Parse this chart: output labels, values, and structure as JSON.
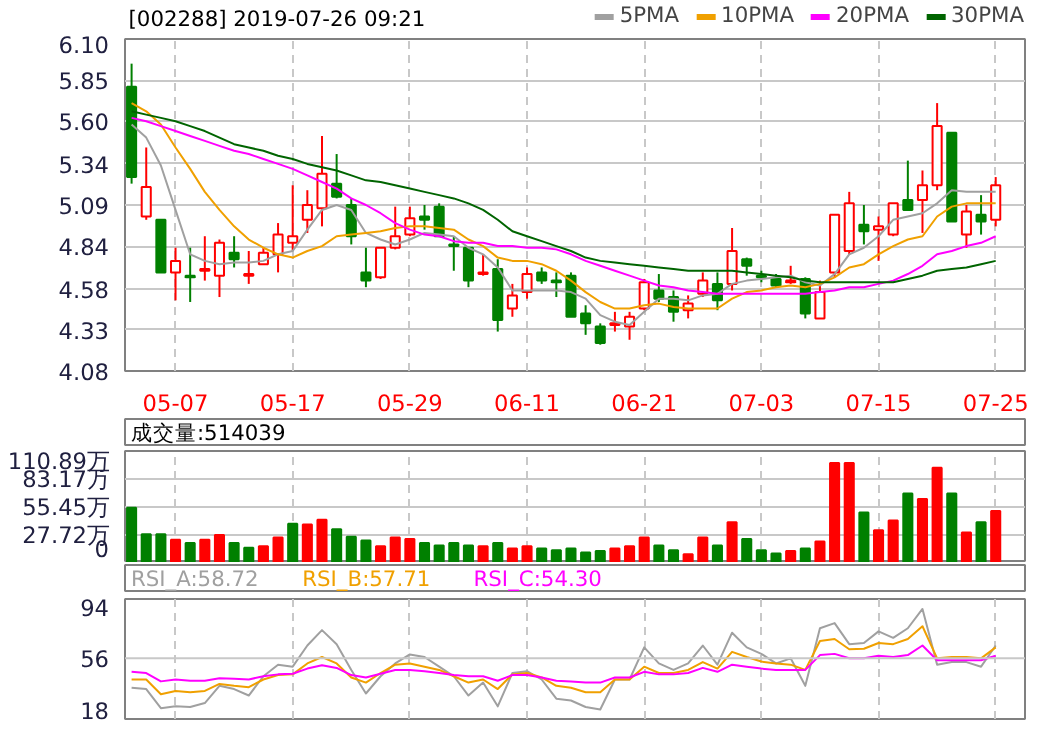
{
  "chart_data": [
    {
      "type": "candlestick",
      "title": "[002288] 2019-07-26 09:21",
      "categories": [
        null,
        null,
        null,
        "05-07",
        null,
        null,
        null,
        null,
        null,
        null,
        null,
        "05-17",
        null,
        null,
        null,
        null,
        null,
        null,
        null,
        "05-29",
        null,
        null,
        null,
        null,
        null,
        null,
        null,
        "06-11",
        null,
        null,
        null,
        null,
        null,
        null,
        null,
        "06-21",
        null,
        null,
        null,
        null,
        null,
        null,
        null,
        "07-03",
        null,
        null,
        null,
        null,
        null,
        null,
        null,
        "07-15",
        null,
        null,
        null,
        null,
        null,
        null,
        null,
        "07-25"
      ],
      "ohlc": [
        [
          5.81,
          5.95,
          5.22,
          5.26
        ],
        [
          5.02,
          5.44,
          5.0,
          5.2
        ],
        [
          5.0,
          5.0,
          4.68,
          4.68
        ],
        [
          4.68,
          4.83,
          4.51,
          4.75
        ],
        [
          4.66,
          4.83,
          4.5,
          4.65
        ],
        [
          4.69,
          4.9,
          4.63,
          4.7
        ],
        [
          4.66,
          4.88,
          4.53,
          4.86
        ],
        [
          4.8,
          4.9,
          4.71,
          4.76
        ],
        [
          4.66,
          4.81,
          4.61,
          4.67
        ],
        [
          4.73,
          4.83,
          4.73,
          4.8
        ],
        [
          4.79,
          4.98,
          4.68,
          4.91
        ],
        [
          4.86,
          5.21,
          4.81,
          4.9
        ],
        [
          5.0,
          5.18,
          4.92,
          5.09
        ],
        [
          5.07,
          5.51,
          4.96,
          5.28
        ],
        [
          5.22,
          5.4,
          5.13,
          5.14
        ],
        [
          5.09,
          5.13,
          4.85,
          4.9
        ],
        [
          4.68,
          4.83,
          4.59,
          4.63
        ],
        [
          4.65,
          4.83,
          4.64,
          4.83
        ],
        [
          4.83,
          5.08,
          4.82,
          4.9
        ],
        [
          4.91,
          5.08,
          4.9,
          5.01
        ],
        [
          5.02,
          5.09,
          4.94,
          5.0
        ],
        [
          5.08,
          5.1,
          4.9,
          4.9
        ],
        [
          4.85,
          4.9,
          4.69,
          4.84
        ],
        [
          4.83,
          4.83,
          4.59,
          4.63
        ],
        [
          4.67,
          4.79,
          4.66,
          4.68
        ],
        [
          4.7,
          4.76,
          4.32,
          4.39
        ],
        [
          4.46,
          4.61,
          4.41,
          4.54
        ],
        [
          4.56,
          4.71,
          4.52,
          4.67
        ],
        [
          4.68,
          4.71,
          4.61,
          4.63
        ],
        [
          4.63,
          4.68,
          4.53,
          4.62
        ],
        [
          4.66,
          4.68,
          4.41,
          4.41
        ],
        [
          4.43,
          4.48,
          4.3,
          4.37
        ],
        [
          4.35,
          4.37,
          4.24,
          4.25
        ],
        [
          4.36,
          4.44,
          4.32,
          4.37
        ],
        [
          4.35,
          4.44,
          4.27,
          4.41
        ],
        [
          4.46,
          4.64,
          4.45,
          4.62
        ],
        [
          4.57,
          4.67,
          4.5,
          4.52
        ],
        [
          4.53,
          4.57,
          4.38,
          4.44
        ],
        [
          4.45,
          4.54,
          4.4,
          4.49
        ],
        [
          4.55,
          4.68,
          4.53,
          4.63
        ],
        [
          4.61,
          4.68,
          4.45,
          4.51
        ],
        [
          4.61,
          4.95,
          4.57,
          4.81
        ],
        [
          4.76,
          4.77,
          4.66,
          4.72
        ],
        [
          4.66,
          4.69,
          4.62,
          4.65
        ],
        [
          4.64,
          4.67,
          4.59,
          4.6
        ],
        [
          4.62,
          4.72,
          4.61,
          4.63
        ],
        [
          4.64,
          4.65,
          4.4,
          4.43
        ],
        [
          4.4,
          4.63,
          4.4,
          4.56
        ],
        [
          4.68,
          5.03,
          4.65,
          5.03
        ],
        [
          4.81,
          5.17,
          4.79,
          5.1
        ],
        [
          4.97,
          5.09,
          4.85,
          4.93
        ],
        [
          4.94,
          5.02,
          4.75,
          4.96
        ],
        [
          4.91,
          5.1,
          4.9,
          5.1
        ],
        [
          5.12,
          5.36,
          5.06,
          5.06
        ],
        [
          5.12,
          5.3,
          4.92,
          5.21
        ],
        [
          5.21,
          5.71,
          5.18,
          5.57
        ],
        [
          5.53,
          5.53,
          4.99,
          4.99
        ],
        [
          4.91,
          5.09,
          4.83,
          5.05
        ],
        [
          5.03,
          5.15,
          4.91,
          4.99
        ],
        [
          5.0,
          5.26,
          4.96,
          5.21
        ]
      ],
      "series": [
        {
          "name": "5PMA",
          "type": "line",
          "color": "#a0a0a0",
          "values": [
            5.58,
            5.5,
            5.33,
            5.06,
            4.79,
            4.75,
            4.73,
            4.74,
            4.74,
            4.75,
            4.79,
            4.81,
            4.94,
            5.06,
            5.09,
            5.06,
            4.92,
            4.88,
            4.85,
            4.88,
            4.92,
            4.91,
            4.9,
            4.83,
            4.79,
            4.71,
            4.57,
            4.57,
            4.57,
            4.57,
            4.56,
            4.52,
            4.42,
            4.38,
            4.36,
            4.44,
            4.52,
            4.52,
            4.51,
            4.54,
            4.55,
            4.61,
            4.63,
            4.64,
            4.65,
            4.66,
            4.62,
            4.6,
            4.67,
            4.79,
            4.83,
            4.9,
            5.0,
            5.02,
            5.04,
            5.1,
            5.18,
            5.17,
            5.17,
            5.17
          ]
        },
        {
          "name": "10PMA",
          "type": "line",
          "color": "#f0a000",
          "values": [
            5.71,
            5.66,
            5.58,
            5.44,
            5.31,
            5.17,
            5.06,
            4.96,
            4.88,
            4.83,
            4.79,
            4.77,
            4.81,
            4.84,
            4.9,
            4.91,
            4.92,
            4.93,
            4.95,
            4.96,
            4.96,
            4.95,
            4.94,
            4.88,
            4.84,
            4.77,
            4.75,
            4.75,
            4.73,
            4.69,
            4.63,
            4.56,
            4.5,
            4.46,
            4.46,
            4.48,
            4.49,
            4.47,
            4.46,
            4.46,
            4.46,
            4.52,
            4.56,
            4.57,
            4.59,
            4.6,
            4.59,
            4.61,
            4.65,
            4.71,
            4.73,
            4.79,
            4.84,
            4.88,
            4.9,
            5.02,
            5.08,
            5.1,
            5.1,
            5.1
          ]
        },
        {
          "name": "20PMA",
          "type": "line",
          "color": "#ff00ff",
          "values": [
            5.62,
            5.6,
            5.57,
            5.54,
            5.51,
            5.48,
            5.45,
            5.42,
            5.4,
            5.37,
            5.34,
            5.31,
            5.27,
            5.23,
            5.19,
            5.13,
            5.09,
            5.04,
            4.98,
            4.94,
            4.91,
            4.9,
            4.87,
            4.86,
            4.86,
            4.84,
            4.84,
            4.83,
            4.83,
            4.82,
            4.79,
            4.75,
            4.72,
            4.69,
            4.66,
            4.63,
            4.6,
            4.59,
            4.57,
            4.56,
            4.55,
            4.55,
            4.55,
            4.55,
            4.55,
            4.55,
            4.55,
            4.56,
            4.57,
            4.59,
            4.59,
            4.61,
            4.63,
            4.67,
            4.72,
            4.79,
            4.81,
            4.84,
            4.86,
            4.9
          ]
        },
        {
          "name": "30PMA",
          "type": "line",
          "color": "#006400",
          "values": [
            5.66,
            5.64,
            5.62,
            5.6,
            5.57,
            5.54,
            5.5,
            5.46,
            5.44,
            5.42,
            5.39,
            5.37,
            5.34,
            5.32,
            5.3,
            5.27,
            5.24,
            5.23,
            5.21,
            5.19,
            5.17,
            5.15,
            5.13,
            5.1,
            5.06,
            5.0,
            4.93,
            4.9,
            4.87,
            4.84,
            4.81,
            4.77,
            4.75,
            4.74,
            4.73,
            4.72,
            4.71,
            4.7,
            4.69,
            4.69,
            4.69,
            4.69,
            4.68,
            4.67,
            4.66,
            4.65,
            4.63,
            4.62,
            4.62,
            4.62,
            4.62,
            4.62,
            4.62,
            4.64,
            4.66,
            4.69,
            4.7,
            4.71,
            4.73,
            4.75
          ]
        }
      ],
      "ylim": [
        4.08,
        6.1
      ],
      "yticks": [
        4.08,
        4.33,
        4.58,
        4.84,
        5.09,
        5.34,
        {
          "value": 5.6,
          "label": "5.60"
        },
        5.85,
        {
          "value": 6.1,
          "label": "6.10"
        }
      ],
      "grid": true,
      "legend": "top right"
    },
    {
      "type": "bar",
      "categories": [
        null,
        null,
        null,
        null,
        null,
        null,
        null,
        null,
        null,
        null,
        null,
        null,
        null,
        null,
        null,
        null,
        null,
        null,
        null,
        null,
        null,
        null,
        null,
        null,
        null,
        null,
        null,
        null,
        null,
        null,
        null,
        null,
        null,
        null,
        null,
        null,
        null,
        null,
        null,
        null,
        null,
        null,
        null,
        null,
        null,
        null,
        null,
        null,
        null,
        null,
        null,
        null,
        null,
        null,
        null,
        null,
        null,
        null,
        null,
        null
      ],
      "values": [
        54.6,
        28.5,
        28.5,
        23,
        19.8,
        23,
        27.7,
        19.8,
        15,
        16.6,
        25.3,
        38.8,
        38,
        42.8,
        33.3,
        26.1,
        22.2,
        16.6,
        25.3,
        23.8,
        19.8,
        17.4,
        19.8,
        17.4,
        16.6,
        19.8,
        14.3,
        16.6,
        14.3,
        12.7,
        14.3,
        10.3,
        11.9,
        14.3,
        16.6,
        25.3,
        17.4,
        12.7,
        8.7,
        25.3,
        17.4,
        40.4,
        23.8,
        12.7,
        9.5,
        11.9,
        14.3,
        21.4,
        99,
        99,
        49.9,
        32.5,
        42,
        68.9,
        63.4,
        94.2,
        68.9,
        30.1,
        40.4,
        51.5
      ],
      "colors": [
        "#008000",
        "#008000",
        "#008000",
        "#ff0000",
        "#008000",
        "#ff0000",
        "#ff0000",
        "#008000",
        "#008000",
        "#ff0000",
        "#ff0000",
        "#008000",
        "#ff0000",
        "#ff0000",
        "#008000",
        "#008000",
        "#008000",
        "#ff0000",
        "#ff0000",
        "#ff0000",
        "#008000",
        "#008000",
        "#008000",
        "#008000",
        "#ff0000",
        "#008000",
        "#ff0000",
        "#ff0000",
        "#008000",
        "#008000",
        "#008000",
        "#008000",
        "#008000",
        "#ff0000",
        "#ff0000",
        "#ff0000",
        "#008000",
        "#008000",
        "#ff0000",
        "#ff0000",
        "#008000",
        "#ff0000",
        "#008000",
        "#008000",
        "#008000",
        "#ff0000",
        "#008000",
        "#ff0000",
        "#ff0000",
        "#ff0000",
        "#008000",
        "#ff0000",
        "#ff0000",
        "#008000",
        "#ff0000",
        "#ff0000",
        "#008000",
        "#ff0000",
        "#008000",
        "#ff0000"
      ],
      "ylim": [
        0,
        110.89
      ],
      "yticks": [
        0,
        {
          "value": 27.72,
          "label": "27.72万"
        },
        {
          "value": 55.45,
          "label": "55.45万"
        },
        {
          "value": 83.17,
          "label": "83.17万"
        },
        {
          "value": 110.89,
          "label": "110.89万"
        }
      ],
      "grid": true,
      "annotations": [
        "成交量:514039"
      ]
    },
    {
      "type": "line",
      "categories": [
        null,
        null,
        null,
        null,
        null,
        null,
        null,
        null,
        null,
        null,
        null,
        null,
        null,
        null,
        null,
        null,
        null,
        null,
        null,
        null,
        null,
        null,
        null,
        null,
        null,
        null,
        null,
        null,
        null,
        null,
        null,
        null,
        null,
        null,
        null,
        null,
        null,
        null,
        null,
        null,
        null,
        null,
        null,
        null,
        null,
        null,
        null,
        null,
        null,
        null,
        null,
        null,
        null,
        null,
        null,
        null,
        null,
        null,
        null,
        null
      ],
      "series": [
        {
          "name": "RSI_A:58.72",
          "color": "#a0a0a0",
          "values": [
            34.2,
            33.2,
            19.0,
            20.4,
            19.9,
            22.8,
            35.6,
            33.2,
            28.4,
            42.7,
            51.3,
            49.8,
            65.5,
            76.9,
            66.5,
            47.4,
            29.9,
            42.7,
            52.2,
            58.9,
            57.0,
            49.8,
            42.7,
            28.4,
            38.0,
            20.4,
            45.1,
            46.5,
            40.3,
            26.1,
            24.7,
            19.9,
            18.0,
            40.3,
            40.3,
            64.1,
            52.2,
            47.4,
            52.2,
            65.5,
            51.3,
            75.0,
            64.1,
            59.3,
            52.2,
            56.0,
            35.6,
            78.3,
            82.1,
            66.5,
            67.4,
            76.0,
            71.2,
            78.3,
            92.6,
            51.3,
            53.2,
            53.2,
            49.8,
            65.5
          ]
        },
        {
          "name": "RSI_B:57.71",
          "color": "#f0a000",
          "values": [
            40.3,
            40.3,
            29.4,
            31.8,
            30.8,
            31.8,
            37.0,
            35.6,
            34.6,
            40.3,
            43.6,
            44.1,
            52.2,
            57.0,
            52.2,
            41.8,
            38.0,
            45.1,
            51.3,
            52.2,
            49.8,
            47.4,
            42.7,
            38.0,
            40.3,
            33.2,
            44.1,
            45.1,
            41.8,
            35.6,
            34.2,
            30.8,
            30.8,
            40.3,
            40.3,
            49.8,
            45.1,
            45.1,
            47.4,
            53.2,
            48.4,
            60.8,
            57.0,
            53.6,
            52.2,
            51.3,
            47.4,
            68.8,
            70.3,
            62.7,
            63.1,
            67.4,
            66.5,
            70.3,
            79.8,
            56.0,
            57.0,
            57.0,
            56.0,
            64.1
          ]
        },
        {
          "name": "RSI_C:54.30",
          "color": "#ff00ff",
          "values": [
            46.0,
            45.1,
            38.9,
            40.3,
            39.4,
            39.4,
            41.3,
            40.8,
            40.3,
            42.7,
            44.1,
            44.6,
            48.4,
            50.8,
            48.9,
            43.6,
            41.8,
            44.6,
            47.4,
            47.4,
            46.5,
            45.1,
            43.6,
            42.7,
            42.7,
            39.4,
            43.6,
            43.6,
            41.8,
            39.4,
            38.9,
            38.0,
            38.0,
            41.8,
            41.8,
            46.0,
            44.1,
            44.1,
            45.1,
            48.9,
            46.0,
            51.3,
            49.8,
            48.4,
            47.4,
            47.4,
            47.4,
            58.4,
            59.3,
            56.0,
            56.0,
            57.9,
            57.0,
            58.4,
            65.5,
            54.6,
            54.6,
            54.6,
            54.6,
            57.9
          ]
        }
      ],
      "ylim": [
        11,
        100
      ],
      "yticks": [
        18,
        56,
        94
      ],
      "grid": "x",
      "ref_lines": [
        {
          "axis": "y",
          "value": 56,
          "color": "#c8c8c8"
        }
      ]
    }
  ]
}
